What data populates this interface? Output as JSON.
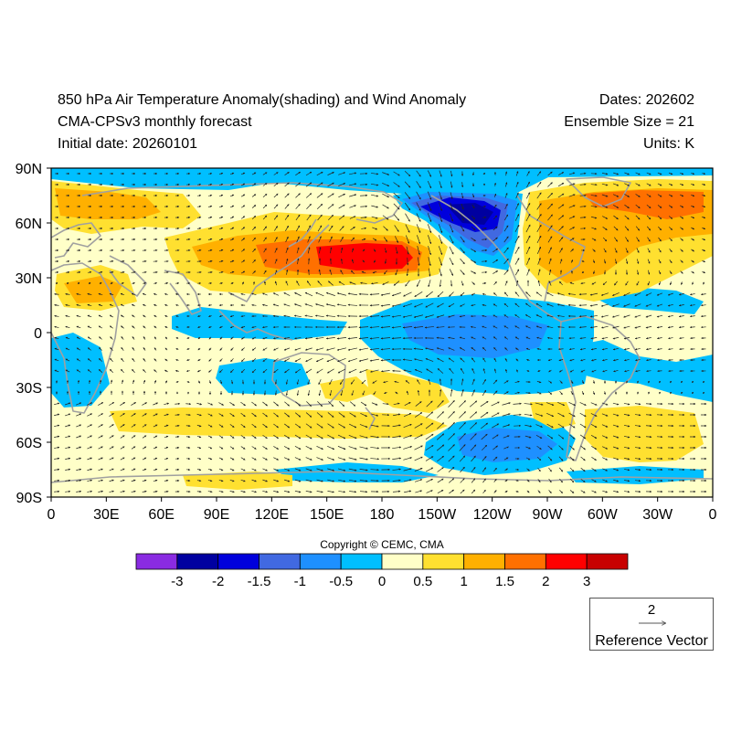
{
  "header": {
    "title": "850 hPa Air Temperature Anomaly(shading) and Wind Anomaly",
    "subtitle": "CMA-CPSv3 monthly forecast",
    "initial_date": "Initial date: 20260101",
    "dates": "Dates: 202602",
    "ensemble": "Ensemble Size = 21",
    "units": "Units: K"
  },
  "map": {
    "lat_labels": [
      "90N",
      "60N",
      "30N",
      "0",
      "30S",
      "60S",
      "90S"
    ],
    "lon_labels": [
      "0",
      "30E",
      "60E",
      "90E",
      "120E",
      "150E",
      "180",
      "150W",
      "120W",
      "90W",
      "60W",
      "30W",
      "0"
    ],
    "background_color": "#ffffc8",
    "coast_color": "#a0a0a0"
  },
  "colorbar": {
    "colors": [
      "#8a2be2",
      "#0000a0",
      "#0000dc",
      "#4169e1",
      "#1e90ff",
      "#00bfff",
      "#ffffc8",
      "#ffe030",
      "#ffb000",
      "#ff7000",
      "#ff0000",
      "#c80000"
    ],
    "labels": [
      "-3",
      "-2",
      "-1.5",
      "-1",
      "-0.5",
      "0",
      "0.5",
      "1",
      "1.5",
      "2",
      "3"
    ]
  },
  "copyright": "Copyright © CEMC, CMA",
  "reference_vector": {
    "magnitude": "2",
    "label": "Reference Vector"
  }
}
